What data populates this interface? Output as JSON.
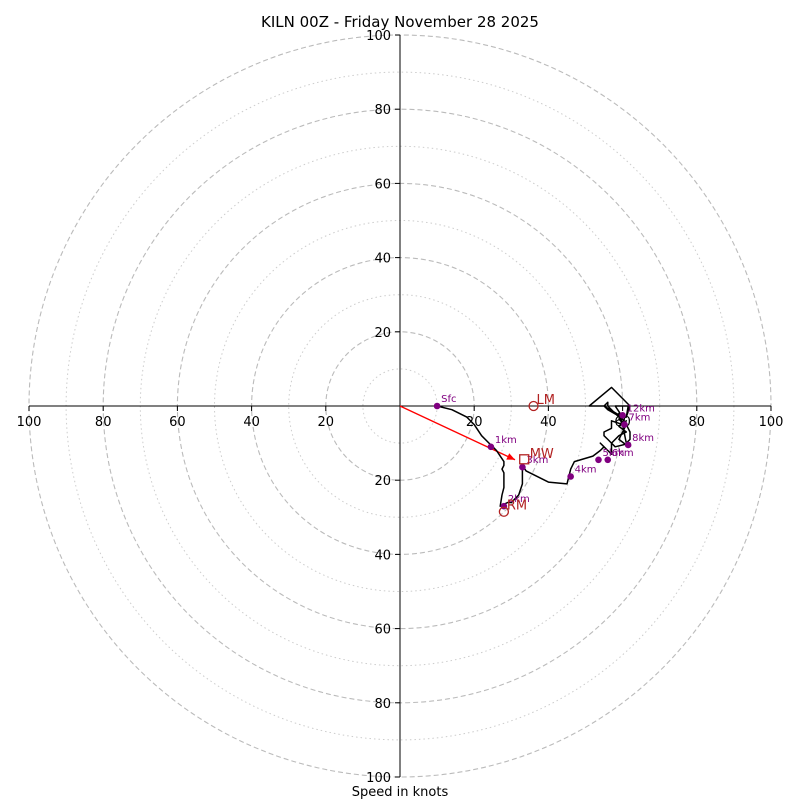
{
  "chart_data": {
    "type": "hodograph",
    "title": "KILN 00Z - Friday November 28 2025",
    "xlabel": "Speed in knots",
    "units": "knots",
    "range": [
      -100,
      100
    ],
    "ring_major": [
      20,
      40,
      60,
      80,
      100
    ],
    "ring_minor": [
      10,
      30,
      50,
      70,
      90
    ],
    "tick_values": [
      20,
      40,
      60,
      80,
      100
    ],
    "trace": [
      [
        10,
        0
      ],
      [
        14,
        -1
      ],
      [
        18,
        -3
      ],
      [
        20,
        -5
      ],
      [
        22,
        -8
      ],
      [
        24,
        -10
      ],
      [
        25,
        -11
      ],
      [
        26,
        -12
      ],
      [
        27,
        -13.5
      ],
      [
        28,
        -15
      ],
      [
        28,
        -16
      ],
      [
        27.5,
        -17
      ],
      [
        28,
        -18
      ],
      [
        28,
        -20
      ],
      [
        28,
        -22
      ],
      [
        27.5,
        -24
      ],
      [
        27,
        -27
      ],
      [
        29,
        -26
      ],
      [
        30,
        -26
      ],
      [
        31,
        -25
      ],
      [
        32,
        -24
      ],
      [
        33,
        -21
      ],
      [
        33,
        -19
      ],
      [
        33,
        -17
      ],
      [
        33,
        -16
      ],
      [
        34,
        -17.5
      ],
      [
        40,
        -20.5
      ],
      [
        45,
        -21
      ],
      [
        46,
        -17
      ],
      [
        47,
        -15
      ],
      [
        52,
        -13.5
      ],
      [
        54,
        -12
      ],
      [
        55,
        -11
      ],
      [
        54,
        -10
      ],
      [
        55.5,
        -11.5
      ],
      [
        56,
        -12
      ],
      [
        57,
        -13
      ],
      [
        57,
        -10
      ],
      [
        59,
        -8
      ],
      [
        61,
        -7
      ],
      [
        59,
        -5.5
      ],
      [
        61,
        -4
      ],
      [
        60,
        -5
      ],
      [
        59.5,
        -3
      ],
      [
        56,
        -1
      ],
      [
        55,
        0
      ],
      [
        56,
        1
      ],
      [
        56,
        0
      ],
      [
        59,
        -3
      ],
      [
        61,
        -3
      ],
      [
        61.5,
        0
      ],
      [
        61,
        0
      ],
      [
        58,
        0
      ],
      [
        60,
        -3
      ],
      [
        59,
        -2
      ],
      [
        61,
        -5
      ],
      [
        62,
        -7
      ],
      [
        62,
        -9
      ],
      [
        61,
        -10
      ],
      [
        60,
        -5
      ],
      [
        57,
        -4
      ],
      [
        57,
        -6
      ],
      [
        55,
        -7
      ],
      [
        55,
        -8
      ],
      [
        56,
        -9
      ],
      [
        57,
        -10
      ],
      [
        58,
        -11
      ],
      [
        62,
        -10
      ],
      [
        61,
        -10.5
      ],
      [
        59,
        -9
      ],
      [
        61,
        -5
      ],
      [
        59,
        -3.5
      ],
      [
        60,
        -3
      ],
      [
        55,
        0
      ],
      [
        51,
        0
      ],
      [
        57,
        5
      ],
      [
        62,
        0
      ],
      [
        61,
        -3
      ]
    ],
    "height_markers": [
      {
        "label": "Sfc",
        "u": 10,
        "v": 0
      },
      {
        "label": "1km",
        "u": 24.5,
        "v": -11
      },
      {
        "label": "2km",
        "u": 28,
        "v": -27
      },
      {
        "label": "3km",
        "u": 33,
        "v": -16.5
      },
      {
        "label": "4km",
        "u": 46,
        "v": -19
      },
      {
        "label": "5km",
        "u": 53.5,
        "v": -14.5
      },
      {
        "label": "6km",
        "u": 56,
        "v": -14.5
      },
      {
        "label": "7km",
        "u": 60.5,
        "v": -5
      },
      {
        "label": "8km",
        "u": 61.5,
        "v": -10.5
      },
      {
        "label": "12km",
        "u": 60,
        "v": -2.5
      }
    ],
    "motion_points": [
      {
        "label": "LM",
        "u": 36,
        "v": 0
      },
      {
        "label": "MW",
        "u": 32,
        "v": -14.5
      },
      {
        "label": "RM",
        "u": 28,
        "v": -28.5
      }
    ],
    "storm_motion_vector": {
      "u": 31,
      "v": -14.5
    }
  },
  "colors": {
    "trace": "#000000",
    "marker": "#800080",
    "marker_text": "#800080",
    "motion": "#b22222",
    "vector": "#ff0000",
    "ring": "#bbbbbb",
    "axis": "#000000"
  }
}
